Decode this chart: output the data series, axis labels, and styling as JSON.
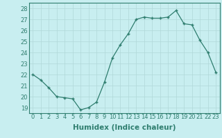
{
  "x": [
    0,
    1,
    2,
    3,
    4,
    5,
    6,
    7,
    8,
    9,
    10,
    11,
    12,
    13,
    14,
    15,
    16,
    17,
    18,
    19,
    20,
    21,
    22,
    23
  ],
  "y": [
    22.0,
    21.5,
    20.8,
    20.0,
    19.9,
    19.8,
    18.8,
    19.0,
    19.5,
    21.3,
    23.5,
    24.7,
    25.7,
    27.0,
    27.2,
    27.1,
    27.1,
    27.2,
    27.8,
    26.6,
    26.5,
    25.1,
    24.0,
    22.2
  ],
  "line_color": "#2e7d6e",
  "marker_color": "#2e7d6e",
  "bg_color": "#c8eef0",
  "grid_color": "#b0d8d8",
  "xlabel": "Humidex (Indice chaleur)",
  "xlabel_fontsize": 7.5,
  "tick_fontsize": 6.0,
  "ylim": [
    18.5,
    28.5
  ],
  "xlim": [
    -0.5,
    23.5
  ],
  "yticks": [
    19,
    20,
    21,
    22,
    23,
    24,
    25,
    26,
    27,
    28
  ],
  "xtick_labels": [
    "0",
    "1",
    "2",
    "3",
    "4",
    "5",
    "6",
    "7",
    "8",
    "9",
    "10",
    "11",
    "12",
    "13",
    "14",
    "15",
    "16",
    "17",
    "18",
    "19",
    "20",
    "21",
    "22",
    "23"
  ]
}
